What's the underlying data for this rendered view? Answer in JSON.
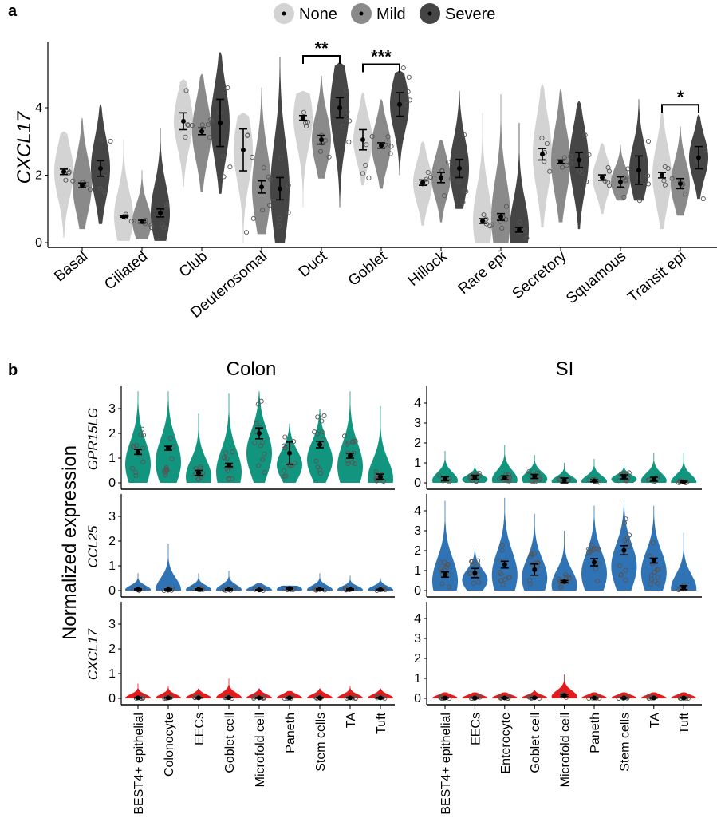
{
  "panel_labels": {
    "a": "a",
    "b": "b"
  },
  "legend": {
    "items": [
      {
        "label": "None",
        "color": "#d3d3d3"
      },
      {
        "label": "Mild",
        "color": "#8a8a8a"
      },
      {
        "label": "Severe",
        "color": "#454545"
      }
    ]
  },
  "chart_data": [
    {
      "type": "violin",
      "panel": "a",
      "ylabel": "CXCL17",
      "yticks": [
        0,
        2,
        4
      ],
      "categories": [
        "Basal",
        "Ciliated",
        "Club",
        "Deuterosomal",
        "Duct",
        "Goblet",
        "Hillock",
        "Rare epi",
        "Secretory",
        "Squamous",
        "Transit epi"
      ],
      "value_format": "[mean, se, min, max]",
      "series": [
        {
          "name": "None",
          "values": [
            [
              2.1,
              0.08,
              0.15,
              3.3
            ],
            [
              0.77,
              0.02,
              0.05,
              3.05
            ],
            [
              3.6,
              0.25,
              1.65,
              4.85
            ],
            [
              2.75,
              0.62,
              0,
              3.85
            ],
            [
              3.7,
              0.07,
              1.05,
              4.5
            ],
            [
              3.05,
              0.3,
              1.7,
              4.45
            ],
            [
              1.78,
              0.08,
              0.5,
              3.0
            ],
            [
              0.64,
              0.07,
              0,
              3.85
            ],
            [
              2.62,
              0.17,
              0.45,
              4.7
            ],
            [
              1.93,
              0.08,
              0.85,
              2.95
            ],
            [
              2.0,
              0.08,
              0.4,
              3.9
            ]
          ]
        },
        {
          "name": "Mild",
          "values": [
            [
              1.7,
              0.07,
              0.4,
              3.7
            ],
            [
              0.62,
              0.04,
              0.1,
              2.15
            ],
            [
              3.3,
              0.1,
              1.5,
              5.0
            ],
            [
              1.65,
              0.18,
              0.25,
              4.6
            ],
            [
              3.05,
              0.13,
              1.9,
              4.95
            ],
            [
              2.88,
              0.08,
              1.6,
              4.25
            ],
            [
              1.93,
              0.15,
              0.6,
              3.05
            ],
            [
              0.76,
              0.1,
              0,
              4.4
            ],
            [
              2.4,
              0.05,
              0.6,
              4.55
            ],
            [
              1.8,
              0.15,
              1.25,
              2.9
            ],
            [
              1.75,
              0.15,
              0.8,
              3.45
            ]
          ]
        },
        {
          "name": "Severe",
          "values": [
            [
              2.2,
              0.23,
              0.55,
              4.1
            ],
            [
              0.88,
              0.12,
              0.05,
              3.4
            ],
            [
              3.55,
              0.7,
              1.45,
              5.65
            ],
            [
              1.6,
              0.33,
              0,
              5.5
            ],
            [
              4.0,
              0.3,
              1.05,
              5.35
            ],
            [
              4.1,
              0.35,
              2.0,
              5.1
            ],
            [
              2.2,
              0.27,
              1.0,
              4.5
            ],
            [
              0.38,
              0.07,
              0,
              3.55
            ],
            [
              2.45,
              0.22,
              0.4,
              4.2
            ],
            [
              2.15,
              0.42,
              1.25,
              4.25
            ],
            [
              2.52,
              0.33,
              1.3,
              3.8
            ]
          ]
        }
      ],
      "significance": [
        {
          "category": "Duct",
          "compare": [
            "None",
            "Severe"
          ],
          "label": "**"
        },
        {
          "category": "Goblet",
          "compare": [
            "None",
            "Severe"
          ],
          "label": "***"
        },
        {
          "category": "Transit epi",
          "compare": [
            "None",
            "Severe"
          ],
          "label": "*"
        }
      ]
    },
    {
      "type": "violin",
      "panel": "b",
      "title": "Colon",
      "ylabel": "Normalized expression",
      "yticks": [
        0,
        1,
        2,
        3
      ],
      "categories": [
        "BEST4+ epithelial",
        "Colonocyte",
        "EECs",
        "Goblet cell",
        "Microfold cell",
        "Paneth",
        "Stem cells",
        "TA",
        "Tuft"
      ],
      "value_format": "[mean, se, max]",
      "rows": [
        {
          "gene": "GPR15LG",
          "color": "#12957f",
          "values": [
            [
              1.25,
              0.1,
              3.7
            ],
            [
              1.4,
              0.08,
              3.7
            ],
            [
              0.4,
              0.1,
              2.8
            ],
            [
              0.72,
              0.07,
              3.6
            ],
            [
              2.0,
              0.22,
              3.7
            ],
            [
              1.2,
              0.45,
              2.4
            ],
            [
              1.55,
              0.13,
              3.0
            ],
            [
              1.1,
              0.1,
              3.7
            ],
            [
              0.25,
              0.1,
              3.1
            ]
          ]
        },
        {
          "gene": "CCL25",
          "color": "#2f73b5",
          "values": [
            [
              0.05,
              0.02,
              0.7
            ],
            [
              0.04,
              0.02,
              1.9
            ],
            [
              0.05,
              0.02,
              0.7
            ],
            [
              0.05,
              0.02,
              0.8
            ],
            [
              0.03,
              0.01,
              0.3
            ],
            [
              0.08,
              0.02,
              0.2
            ],
            [
              0.05,
              0.02,
              0.7
            ],
            [
              0.05,
              0.02,
              0.6
            ],
            [
              0.04,
              0.01,
              0.5
            ]
          ]
        },
        {
          "gene": "CXCL17",
          "color": "#e41a1c",
          "values": [
            [
              0.02,
              0.01,
              0.6
            ],
            [
              0.02,
              0.01,
              0.5
            ],
            [
              0.02,
              0.01,
              0.4
            ],
            [
              0.03,
              0.01,
              0.8
            ],
            [
              0.02,
              0.01,
              0.4
            ],
            [
              0.02,
              0.01,
              0.3
            ],
            [
              0.02,
              0.01,
              0.4
            ],
            [
              0.02,
              0.01,
              0.5
            ],
            [
              0.02,
              0.01,
              0.4
            ]
          ]
        }
      ]
    },
    {
      "type": "violin",
      "panel": "b",
      "title": "SI",
      "yticks": [
        0,
        1,
        2,
        3,
        4
      ],
      "categories": [
        "BEST4+ epithelial",
        "EECs",
        "Enterocyte",
        "Goblet cell",
        "Microfold cell",
        "Paneth",
        "Stem cells",
        "TA",
        "Tuft"
      ],
      "value_format": "[mean, se, max]",
      "rows": [
        {
          "gene": "GPR15LG",
          "color": "#12957f",
          "values": [
            [
              0.2,
              0.1,
              1.6
            ],
            [
              0.28,
              0.1,
              0.9
            ],
            [
              0.25,
              0.1,
              1.9
            ],
            [
              0.32,
              0.1,
              1.4
            ],
            [
              0.12,
              0.12,
              1.0
            ],
            [
              0.1,
              0.05,
              1.2
            ],
            [
              0.3,
              0.1,
              0.9
            ],
            [
              0.18,
              0.1,
              1.5
            ],
            [
              0.05,
              0.03,
              1.5
            ]
          ]
        },
        {
          "gene": "CCL25",
          "color": "#2f73b5",
          "values": [
            [
              0.8,
              0.13,
              4.5
            ],
            [
              0.88,
              0.23,
              2.15
            ],
            [
              1.3,
              0.17,
              4.65
            ],
            [
              1.05,
              0.28,
              3.85
            ],
            [
              0.45,
              0.05,
              3.0
            ],
            [
              1.42,
              0.18,
              4.25
            ],
            [
              2.02,
              0.23,
              4.5
            ],
            [
              1.5,
              0.12,
              4.25
            ],
            [
              0.15,
              0.1,
              2.9
            ]
          ]
        },
        {
          "gene": "CXCL17",
          "color": "#e41a1c",
          "values": [
            [
              0.02,
              0.01,
              0.3
            ],
            [
              0.02,
              0.01,
              0.3
            ],
            [
              0.02,
              0.01,
              0.3
            ],
            [
              0.03,
              0.01,
              0.4
            ],
            [
              0.15,
              0.05,
              1.2
            ],
            [
              0.02,
              0.01,
              0.3
            ],
            [
              0.02,
              0.01,
              0.3
            ],
            [
              0.02,
              0.01,
              0.3
            ],
            [
              0.02,
              0.01,
              0.3
            ]
          ]
        }
      ]
    }
  ]
}
